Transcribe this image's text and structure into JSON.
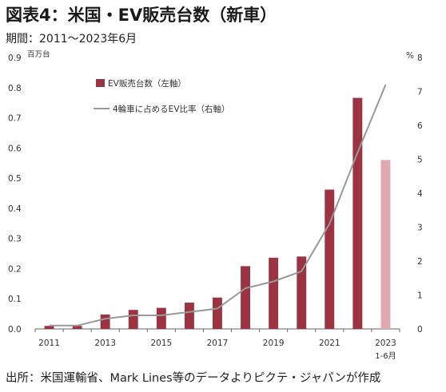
{
  "title": "図表4：米国・EV販売台数（新車）",
  "subtitle": "期間：2011～2023年6月",
  "source": "出所：米国運輸省、Mark Lines等のデータよりピクテ・ジャパンが作成",
  "chart_data": {
    "type": "bar",
    "categories": [
      "2011",
      "2012",
      "2013",
      "2014",
      "2015",
      "2016",
      "2017",
      "2018",
      "2019",
      "2020",
      "2021",
      "2022",
      "2023 1-6月"
    ],
    "x_tick_labels": [
      "2011",
      "",
      "2013",
      "",
      "2015",
      "",
      "2017",
      "",
      "2019",
      "",
      "2021",
      "",
      "2023"
    ],
    "x_tick_sublabel": "1-6月",
    "series": [
      {
        "name": "EV販売台数（左軸）",
        "type": "bar",
        "axis": "left",
        "values": [
          0.01,
          0.01,
          0.048,
          0.063,
          0.07,
          0.087,
          0.104,
          0.208,
          0.236,
          0.24,
          0.462,
          0.766,
          0.56
        ],
        "color": "#9b3340",
        "last_color": "#deaab0"
      },
      {
        "name": "4輪車に占めるEV比率（右軸）",
        "type": "line",
        "axis": "right",
        "values": [
          0.1,
          0.1,
          0.3,
          0.4,
          0.4,
          0.5,
          0.6,
          1.2,
          1.4,
          1.7,
          3.1,
          5.2,
          7.2
        ],
        "color": "#999999"
      }
    ],
    "left_axis": {
      "unit": "百万台",
      "ylim": [
        0,
        0.9
      ],
      "ticks": [
        "0.0",
        "0.1",
        "0.2",
        "0.3",
        "0.4",
        "0.5",
        "0.6",
        "0.7",
        "0.8",
        "0.9"
      ]
    },
    "right_axis": {
      "unit": "%",
      "ylim": [
        0,
        8
      ],
      "ticks": [
        "0",
        "1",
        "2",
        "3",
        "4",
        "5",
        "6",
        "7",
        "8"
      ]
    },
    "legend_position": "top-left",
    "grid": false
  }
}
